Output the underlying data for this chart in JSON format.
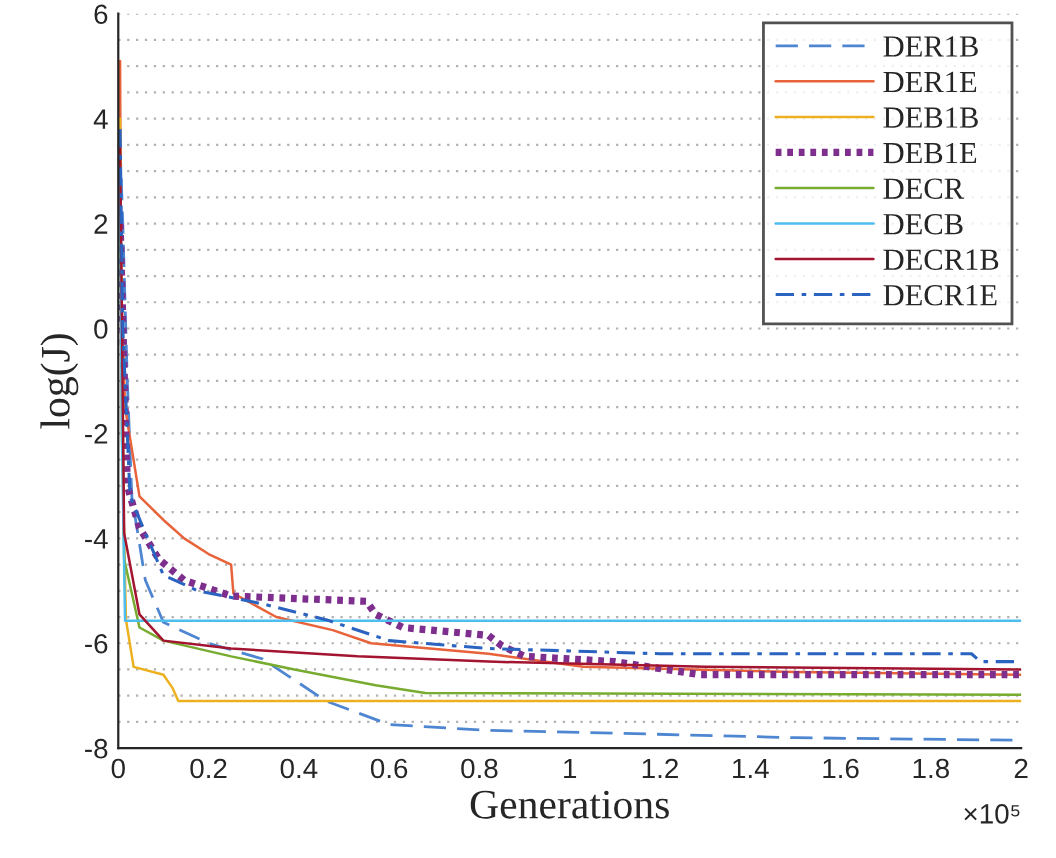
{
  "chart_data": {
    "type": "line",
    "xlabel": "Generations",
    "ylabel": "log(J)",
    "annotations": [
      "×10⁵"
    ],
    "xlim": [
      0,
      2
    ],
    "ylim": [
      -8,
      6
    ],
    "xticks": [
      0,
      0.2,
      0.4,
      0.6,
      0.8,
      1,
      1.2,
      1.4,
      1.6,
      1.8,
      2
    ],
    "yticks": [
      -8,
      -6,
      -4,
      -2,
      0,
      2,
      4,
      6
    ],
    "grid": "y",
    "legend": "top right",
    "marker": "none",
    "series": [
      {
        "name": "DER1B",
        "color": "#4f86d1",
        "line_style": "dashed",
        "x": [
          0.004,
          0.01,
          0.02,
          0.03,
          0.06,
          0.1,
          0.2,
          0.32,
          0.46,
          0.6,
          0.82,
          1.03,
          1.5,
          2
        ],
        "values": [
          3.5,
          2,
          -1,
          -3.2,
          -4.8,
          -5.6,
          -6.0,
          -6.3,
          -7.1,
          -7.55,
          -7.66,
          -7.7,
          -7.8,
          -7.85
        ]
      },
      {
        "name": "DER1E",
        "color": "#e8623a",
        "line_style": "solid",
        "x": [
          0.004,
          0.006,
          0.015,
          0.047,
          0.1,
          0.146,
          0.2,
          0.25,
          0.255,
          0.35,
          0.475,
          0.56,
          0.82,
          1.03,
          1.5,
          2
        ],
        "values": [
          5.1,
          1,
          -1.5,
          -3.2,
          -3.65,
          -4.0,
          -4.3,
          -4.5,
          -5.05,
          -5.5,
          -5.75,
          -6.0,
          -6.2,
          -6.45,
          -6.55,
          -6.6
        ]
      },
      {
        "name": "DEB1B",
        "color": "#edb120",
        "line_style": "solid",
        "x": [
          0.004,
          0.008,
          0.017,
          0.034,
          0.1,
          0.12,
          0.133,
          2
        ],
        "values": [
          4,
          -2,
          -5.55,
          -6.45,
          -6.6,
          -6.85,
          -7.1,
          -7.1
        ]
      },
      {
        "name": "DEB1E",
        "color": "#7e2f8e",
        "line_style": "dotted",
        "x": [
          0.004,
          0.02,
          0.047,
          0.09,
          0.146,
          0.25,
          0.55,
          0.57,
          0.63,
          0.82,
          0.85,
          0.9,
          1.1,
          1.29,
          2
        ],
        "values": [
          2,
          -3,
          -3.8,
          -4.4,
          -4.8,
          -5.1,
          -5.2,
          -5.45,
          -5.7,
          -5.85,
          -6.05,
          -6.25,
          -6.35,
          -6.6,
          -6.6
        ]
      },
      {
        "name": "DECR",
        "color": "#77ac30",
        "line_style": "solid",
        "x": [
          0.004,
          0.013,
          0.047,
          0.1,
          0.25,
          0.39,
          0.57,
          0.68,
          2
        ],
        "values": [
          3,
          -4.4,
          -5.7,
          -5.95,
          -6.25,
          -6.5,
          -6.8,
          -6.95,
          -6.98
        ]
      },
      {
        "name": "DECB",
        "color": "#4dbeee",
        "line_style": "solid",
        "x": [
          0.004,
          0.008,
          0.015,
          2
        ],
        "values": [
          3,
          -2,
          -5.57,
          -5.57
        ]
      },
      {
        "name": "DECR1B",
        "color": "#a2142f",
        "line_style": "solid",
        "x": [
          0.004,
          0.013,
          0.047,
          0.1,
          0.25,
          0.53,
          0.82,
          1.3,
          2
        ],
        "values": [
          3.5,
          -3.9,
          -5.45,
          -5.95,
          -6.1,
          -6.25,
          -6.35,
          -6.45,
          -6.5
        ]
      },
      {
        "name": "DECR1E",
        "color": "#2a63c0",
        "line_style": "dashdot",
        "x": [
          0.004,
          0.01,
          0.026,
          0.06,
          0.1,
          0.176,
          0.32,
          0.46,
          0.6,
          0.82,
          1.2,
          1.89,
          1.91,
          2
        ],
        "values": [
          3.8,
          0,
          -3.2,
          -3.9,
          -4.7,
          -5.0,
          -5.25,
          -5.55,
          -5.95,
          -6.1,
          -6.2,
          -6.2,
          -6.35,
          -6.35
        ]
      }
    ]
  }
}
